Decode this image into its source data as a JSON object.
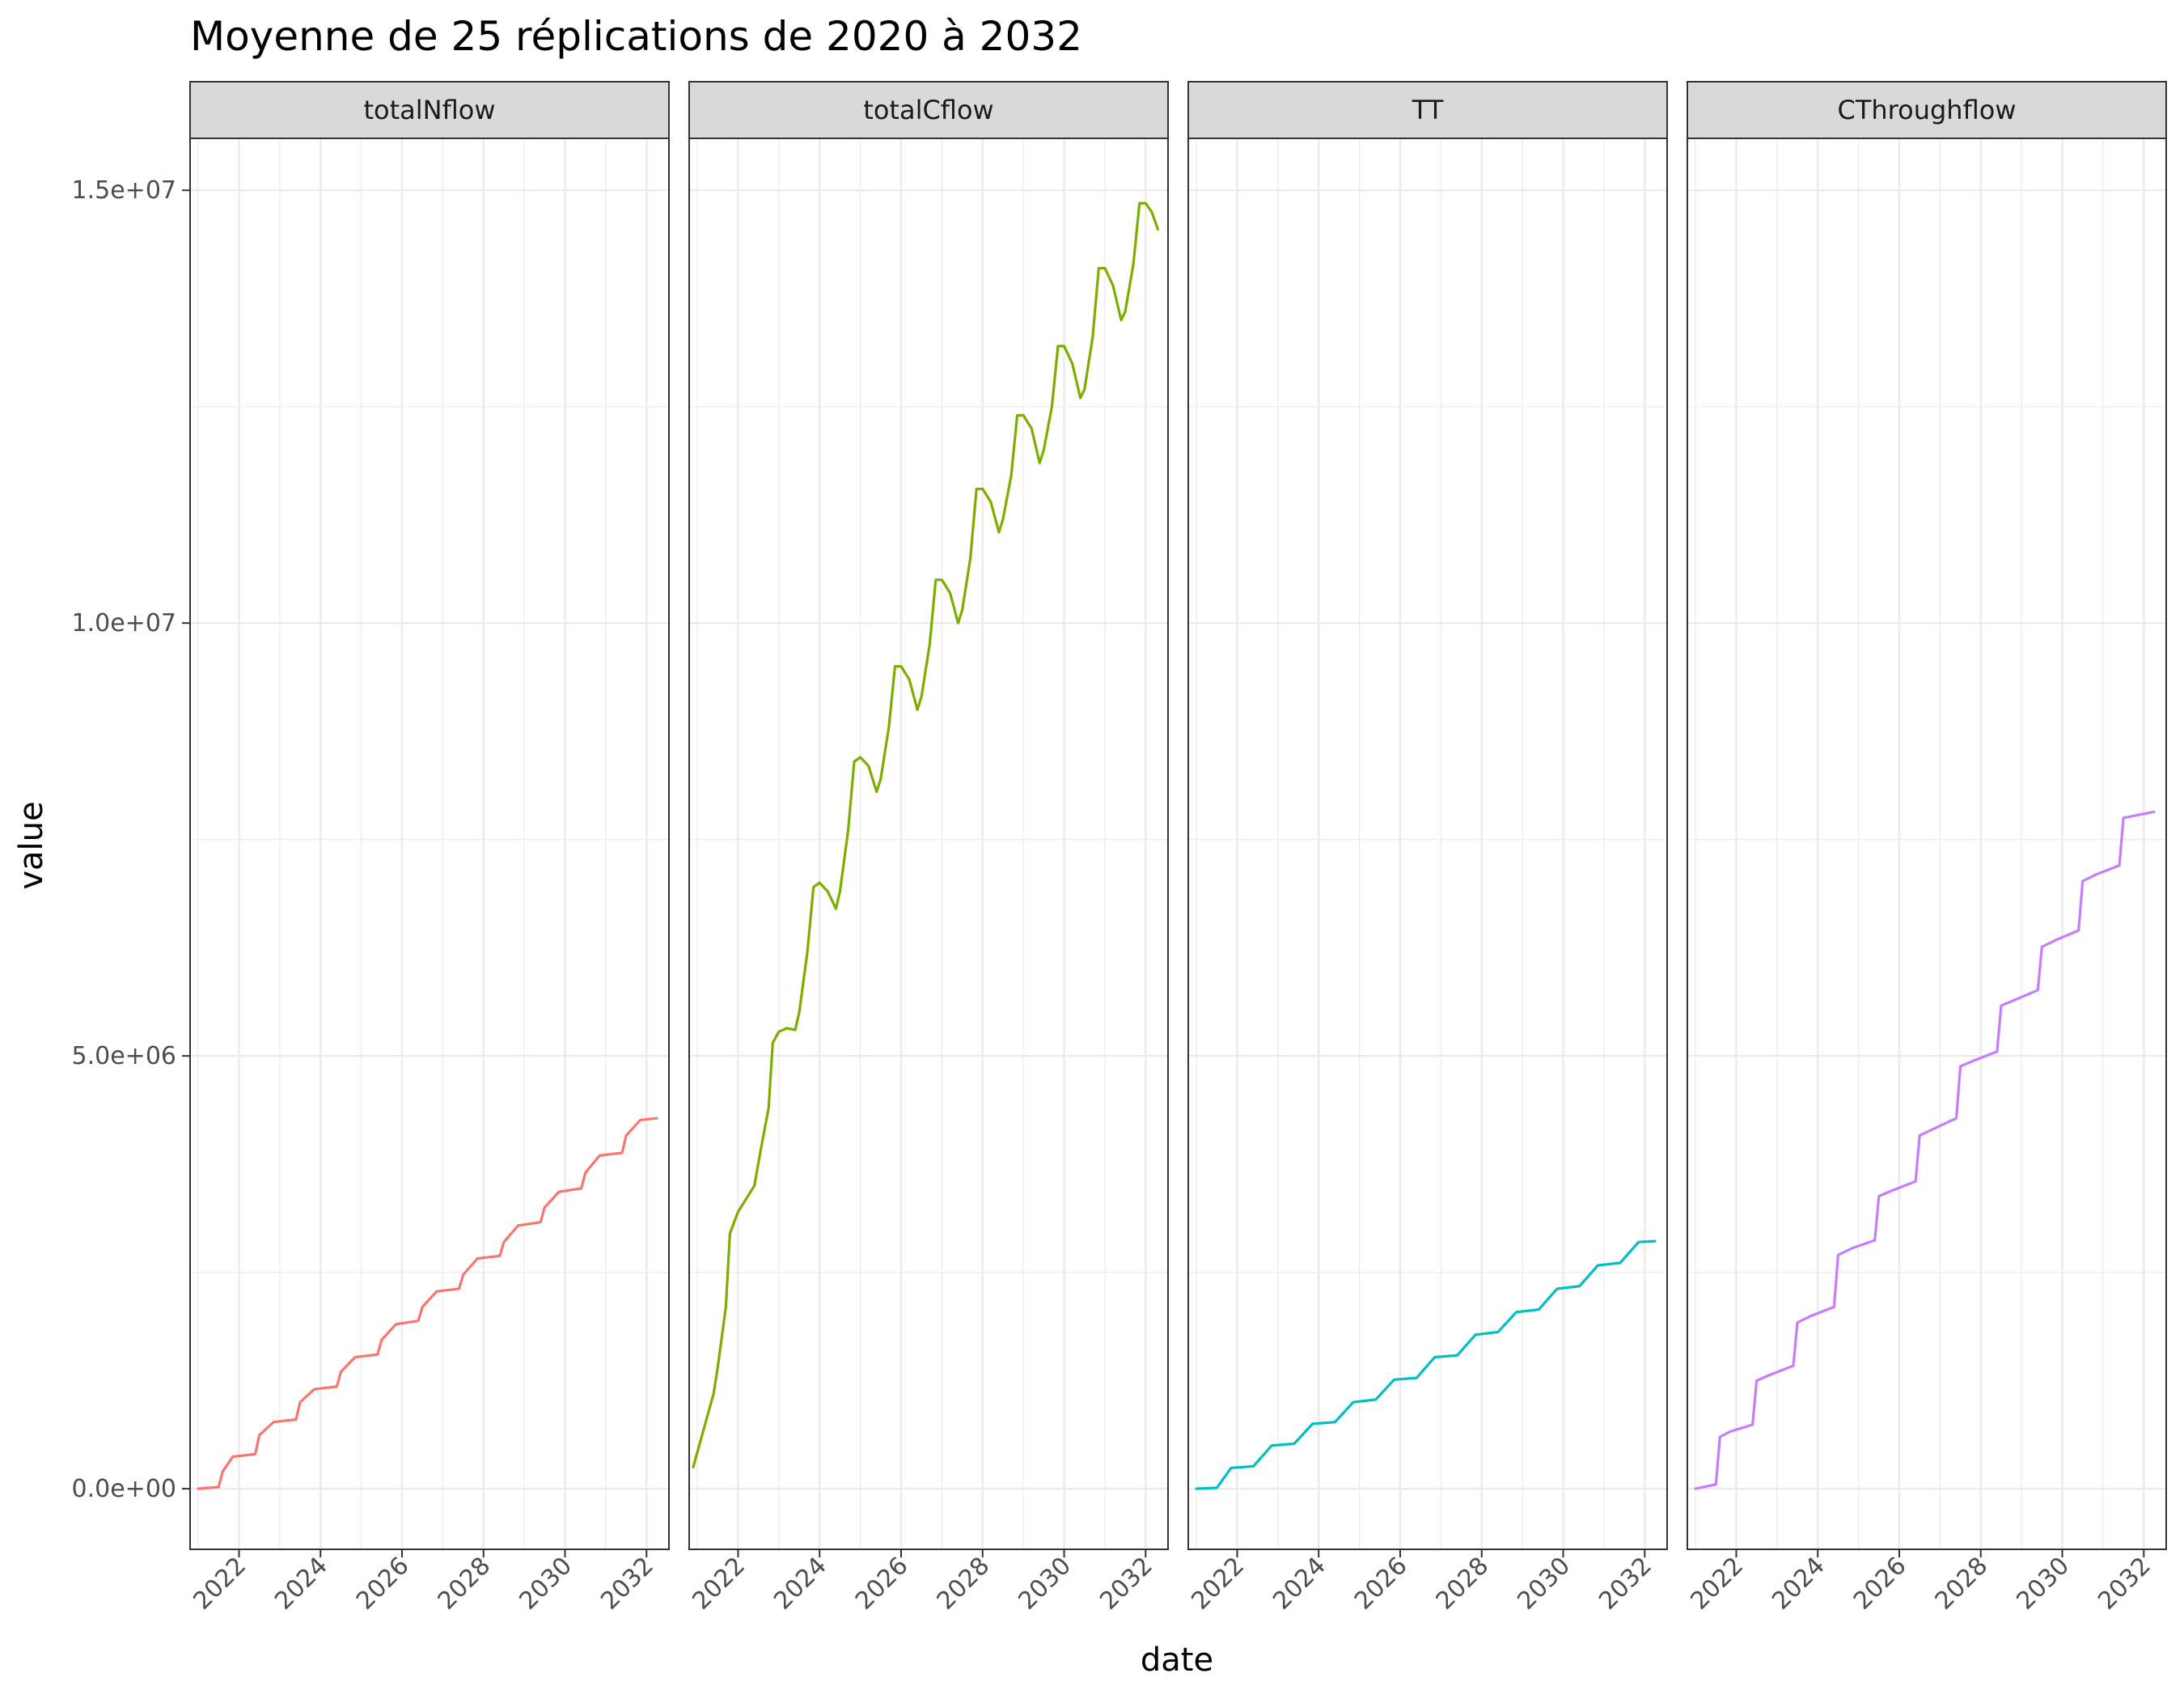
{
  "chart_data": {
    "type": "line",
    "title": "Moyenne de 25 réplications de 2020 à 2032",
    "xlabel": "date",
    "ylabel": "value",
    "ylim": [
      -700000,
      15600000
    ],
    "xlim": [
      2020.8,
      2032.55
    ],
    "x_ticks": [
      2022,
      2024,
      2026,
      2028,
      2030,
      2032
    ],
    "x_tick_labels": [
      "2022",
      "2024",
      "2026",
      "2028",
      "2030",
      "2032"
    ],
    "y_ticks": [
      0,
      5000000,
      10000000,
      15000000
    ],
    "y_tick_labels": [
      "0.0e+00",
      "5.0e+06",
      "1.0e+07",
      "1.5e+07"
    ],
    "grid": true,
    "legend": "none",
    "facets": [
      {
        "name": "totalNflow",
        "color": "#F8766D",
        "points": [
          [
            2021.0,
            0
          ],
          [
            2021.5,
            20000
          ],
          [
            2021.6,
            200000
          ],
          [
            2021.85,
            370000
          ],
          [
            2022.4,
            400000
          ],
          [
            2022.5,
            620000
          ],
          [
            2022.85,
            770000
          ],
          [
            2023.4,
            800000
          ],
          [
            2023.5,
            1000000
          ],
          [
            2023.85,
            1150000
          ],
          [
            2024.4,
            1180000
          ],
          [
            2024.5,
            1350000
          ],
          [
            2024.85,
            1520000
          ],
          [
            2025.4,
            1550000
          ],
          [
            2025.5,
            1720000
          ],
          [
            2025.85,
            1900000
          ],
          [
            2026.4,
            1940000
          ],
          [
            2026.5,
            2100000
          ],
          [
            2026.85,
            2280000
          ],
          [
            2027.4,
            2310000
          ],
          [
            2027.5,
            2470000
          ],
          [
            2027.85,
            2660000
          ],
          [
            2028.4,
            2690000
          ],
          [
            2028.5,
            2850000
          ],
          [
            2028.85,
            3040000
          ],
          [
            2029.4,
            3080000
          ],
          [
            2029.5,
            3250000
          ],
          [
            2029.85,
            3430000
          ],
          [
            2030.4,
            3470000
          ],
          [
            2030.5,
            3650000
          ],
          [
            2030.85,
            3850000
          ],
          [
            2031.4,
            3880000
          ],
          [
            2031.5,
            4080000
          ],
          [
            2031.85,
            4260000
          ],
          [
            2032.25,
            4280000
          ]
        ]
      },
      {
        "name": "totalCflow",
        "color": "#7CAE00",
        "points": [
          [
            2020.9,
            250000
          ],
          [
            2021.4,
            1100000
          ],
          [
            2021.5,
            1400000
          ],
          [
            2021.7,
            2100000
          ],
          [
            2021.8,
            2950000
          ],
          [
            2022.0,
            3200000
          ],
          [
            2022.4,
            3500000
          ],
          [
            2022.55,
            3900000
          ],
          [
            2022.75,
            4400000
          ],
          [
            2022.85,
            5150000
          ],
          [
            2023.0,
            5280000
          ],
          [
            2023.2,
            5320000
          ],
          [
            2023.4,
            5300000
          ],
          [
            2023.5,
            5500000
          ],
          [
            2023.7,
            6200000
          ],
          [
            2023.85,
            6950000
          ],
          [
            2024.0,
            7000000
          ],
          [
            2024.2,
            6900000
          ],
          [
            2024.4,
            6700000
          ],
          [
            2024.5,
            6900000
          ],
          [
            2024.7,
            7600000
          ],
          [
            2024.85,
            8400000
          ],
          [
            2025.0,
            8450000
          ],
          [
            2025.2,
            8350000
          ],
          [
            2025.4,
            8050000
          ],
          [
            2025.5,
            8200000
          ],
          [
            2025.7,
            8800000
          ],
          [
            2025.85,
            9500000
          ],
          [
            2026.0,
            9500000
          ],
          [
            2026.2,
            9350000
          ],
          [
            2026.4,
            9000000
          ],
          [
            2026.5,
            9150000
          ],
          [
            2026.7,
            9750000
          ],
          [
            2026.85,
            10500000
          ],
          [
            2027.0,
            10500000
          ],
          [
            2027.2,
            10350000
          ],
          [
            2027.4,
            10000000
          ],
          [
            2027.5,
            10150000
          ],
          [
            2027.7,
            10750000
          ],
          [
            2027.85,
            11550000
          ],
          [
            2028.0,
            11550000
          ],
          [
            2028.2,
            11400000
          ],
          [
            2028.4,
            11050000
          ],
          [
            2028.5,
            11200000
          ],
          [
            2028.7,
            11700000
          ],
          [
            2028.85,
            12400000
          ],
          [
            2029.0,
            12400000
          ],
          [
            2029.2,
            12250000
          ],
          [
            2029.4,
            11850000
          ],
          [
            2029.5,
            12000000
          ],
          [
            2029.7,
            12500000
          ],
          [
            2029.85,
            13200000
          ],
          [
            2030.0,
            13200000
          ],
          [
            2030.2,
            13000000
          ],
          [
            2030.4,
            12600000
          ],
          [
            2030.5,
            12700000
          ],
          [
            2030.7,
            13300000
          ],
          [
            2030.85,
            14100000
          ],
          [
            2031.0,
            14100000
          ],
          [
            2031.2,
            13900000
          ],
          [
            2031.4,
            13500000
          ],
          [
            2031.5,
            13600000
          ],
          [
            2031.7,
            14150000
          ],
          [
            2031.85,
            14850000
          ],
          [
            2032.0,
            14850000
          ],
          [
            2032.15,
            14750000
          ],
          [
            2032.3,
            14550000
          ]
        ]
      },
      {
        "name": "TT",
        "color": "#00BFC4",
        "points": [
          [
            2021.0,
            0
          ],
          [
            2021.5,
            10000
          ],
          [
            2021.85,
            240000
          ],
          [
            2022.4,
            260000
          ],
          [
            2022.85,
            500000
          ],
          [
            2023.4,
            520000
          ],
          [
            2023.85,
            750000
          ],
          [
            2024.4,
            770000
          ],
          [
            2024.85,
            1000000
          ],
          [
            2025.4,
            1030000
          ],
          [
            2025.85,
            1260000
          ],
          [
            2026.4,
            1280000
          ],
          [
            2026.85,
            1520000
          ],
          [
            2027.4,
            1540000
          ],
          [
            2027.85,
            1780000
          ],
          [
            2028.4,
            1810000
          ],
          [
            2028.85,
            2040000
          ],
          [
            2029.4,
            2070000
          ],
          [
            2029.85,
            2310000
          ],
          [
            2030.4,
            2340000
          ],
          [
            2030.85,
            2580000
          ],
          [
            2031.4,
            2610000
          ],
          [
            2031.85,
            2850000
          ],
          [
            2032.25,
            2860000
          ]
        ]
      },
      {
        "name": "CThroughflow",
        "color": "#C77CFF",
        "points": [
          [
            2021.0,
            0
          ],
          [
            2021.5,
            50000
          ],
          [
            2021.6,
            600000
          ],
          [
            2021.85,
            660000
          ],
          [
            2022.4,
            740000
          ],
          [
            2022.5,
            1250000
          ],
          [
            2022.85,
            1320000
          ],
          [
            2023.4,
            1420000
          ],
          [
            2023.5,
            1920000
          ],
          [
            2023.85,
            2000000
          ],
          [
            2024.4,
            2100000
          ],
          [
            2024.5,
            2700000
          ],
          [
            2024.85,
            2780000
          ],
          [
            2025.4,
            2870000
          ],
          [
            2025.5,
            3380000
          ],
          [
            2025.85,
            3450000
          ],
          [
            2026.4,
            3550000
          ],
          [
            2026.5,
            4080000
          ],
          [
            2026.85,
            4160000
          ],
          [
            2027.4,
            4280000
          ],
          [
            2027.5,
            4880000
          ],
          [
            2027.85,
            4950000
          ],
          [
            2028.4,
            5050000
          ],
          [
            2028.5,
            5580000
          ],
          [
            2028.85,
            5650000
          ],
          [
            2029.4,
            5760000
          ],
          [
            2029.5,
            6260000
          ],
          [
            2029.85,
            6340000
          ],
          [
            2030.4,
            6450000
          ],
          [
            2030.5,
            7020000
          ],
          [
            2030.85,
            7100000
          ],
          [
            2031.4,
            7200000
          ],
          [
            2031.5,
            7750000
          ],
          [
            2032.25,
            7820000
          ]
        ]
      }
    ]
  }
}
